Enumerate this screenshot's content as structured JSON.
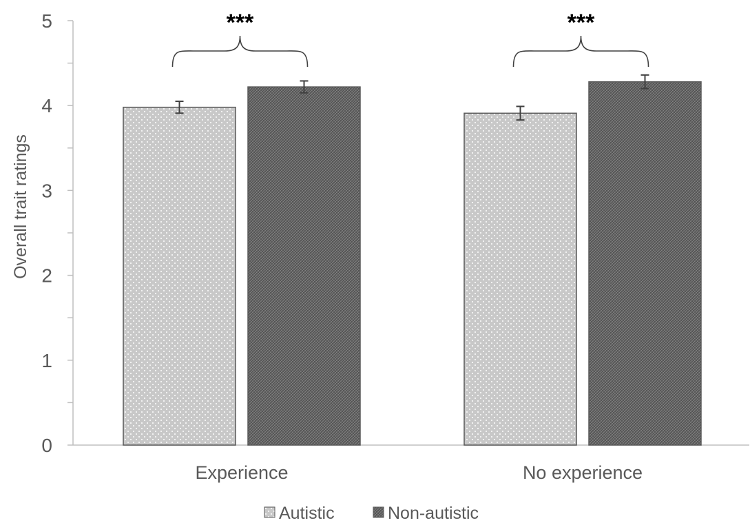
{
  "chart_data": {
    "type": "bar",
    "categories": [
      "Experience",
      "No experience"
    ],
    "series": [
      {
        "name": "Autistic",
        "values": [
          3.98,
          3.91
        ],
        "errors": [
          0.07,
          0.08
        ],
        "pattern": "dotted-light"
      },
      {
        "name": "Non-autistic",
        "values": [
          4.22,
          4.28
        ],
        "errors": [
          0.07,
          0.08
        ],
        "pattern": "crosshatch-dark"
      }
    ],
    "ylabel": "Overall trait ratings",
    "xlabel": "",
    "ylim": [
      0,
      5
    ],
    "yticks": [
      "0",
      "1",
      "2",
      "3",
      "4",
      "5"
    ],
    "grid": false,
    "legend_position": "bottom",
    "annotations": [
      {
        "text": "***",
        "group": "Experience"
      },
      {
        "text": "***",
        "group": "No experience"
      }
    ],
    "colors": {
      "autistic_fill": "#c8c8c8",
      "autistic_dots": "#ffffff",
      "nonautistic_fill": "#5e5e5e",
      "nonautistic_hatch": "#8a8a8a",
      "axis": "#bfbfbf",
      "bar_edge": "#595959",
      "text": "#595959"
    }
  }
}
